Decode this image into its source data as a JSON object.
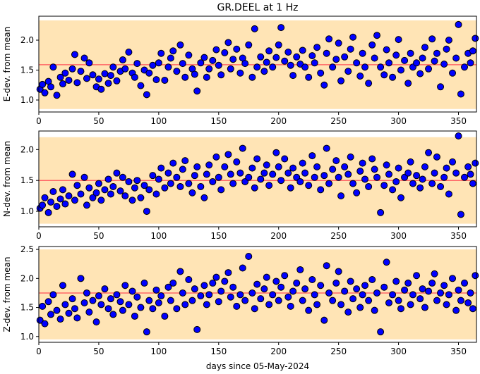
{
  "figure": {
    "title": "GR.DEEL at 1 Hz",
    "xlabel": "days since 05-May-2024"
  },
  "style": {
    "band_color": "#ffe4b5",
    "mean_line_color": "#ff6666",
    "point_fill": "#0000ff",
    "point_edge": "#000000"
  },
  "chart_data": [
    {
      "type": "scatter",
      "ylabel": "E-dev. from mean",
      "xlim": [
        0,
        365
      ],
      "ylim": [
        0.8,
        2.4
      ],
      "xticks": [
        0,
        50,
        100,
        150,
        200,
        250,
        300,
        350
      ],
      "yticks": [
        1.0,
        1.5,
        2.0
      ],
      "band": [
        0.85,
        2.33
      ],
      "mean": 1.59,
      "points": {
        "x": [
          1,
          3,
          5,
          8,
          10,
          12,
          15,
          18,
          20,
          22,
          25,
          28,
          30,
          32,
          35,
          38,
          40,
          42,
          45,
          48,
          50,
          52,
          55,
          58,
          60,
          62,
          65,
          68,
          70,
          72,
          75,
          78,
          80,
          82,
          85,
          88,
          90,
          92,
          95,
          98,
          100,
          102,
          105,
          108,
          110,
          112,
          115,
          118,
          120,
          122,
          125,
          128,
          130,
          132,
          135,
          138,
          140,
          142,
          145,
          148,
          150,
          152,
          155,
          158,
          160,
          162,
          165,
          168,
          170,
          172,
          175,
          178,
          180,
          182,
          185,
          188,
          190,
          192,
          195,
          198,
          200,
          202,
          205,
          208,
          210,
          212,
          215,
          218,
          220,
          222,
          225,
          228,
          230,
          232,
          235,
          238,
          240,
          242,
          245,
          248,
          250,
          252,
          255,
          258,
          260,
          262,
          265,
          268,
          270,
          272,
          275,
          278,
          280,
          282,
          285,
          288,
          290,
          292,
          295,
          298,
          300,
          302,
          305,
          308,
          310,
          312,
          315,
          318,
          320,
          322,
          325,
          328,
          330,
          332,
          335,
          338,
          340,
          342,
          345,
          348,
          350,
          352,
          355,
          358,
          360,
          362,
          364
        ],
        "y": [
          1.18,
          1.26,
          1.12,
          1.31,
          1.22,
          1.55,
          1.08,
          1.38,
          1.27,
          1.45,
          1.33,
          1.52,
          1.76,
          1.29,
          1.48,
          1.7,
          1.36,
          1.62,
          1.42,
          1.22,
          1.35,
          1.18,
          1.44,
          1.28,
          1.41,
          1.55,
          1.32,
          1.48,
          1.67,
          1.52,
          1.8,
          1.45,
          1.38,
          1.61,
          1.24,
          1.5,
          1.09,
          1.45,
          1.58,
          1.34,
          1.62,
          1.78,
          1.33,
          1.55,
          1.7,
          1.82,
          1.48,
          1.92,
          1.61,
          1.38,
          1.75,
          1.52,
          1.43,
          1.15,
          1.62,
          1.71,
          1.38,
          1.52,
          1.66,
          1.84,
          1.58,
          1.42,
          1.79,
          1.96,
          1.52,
          1.68,
          1.85,
          1.45,
          1.7,
          1.61,
          1.92,
          1.38,
          2.19,
          1.55,
          1.72,
          1.48,
          1.63,
          1.82,
          1.55,
          1.71,
          1.92,
          2.21,
          1.65,
          1.8,
          1.58,
          1.41,
          1.72,
          1.6,
          1.83,
          1.55,
          1.38,
          1.74,
          1.62,
          1.88,
          1.45,
          1.25,
          1.78,
          2.02,
          1.55,
          1.68,
          1.95,
          1.32,
          1.72,
          1.48,
          1.85,
          2.05,
          1.62,
          1.4,
          1.78,
          1.55,
          1.28,
          1.92,
          1.7,
          2.08,
          1.55,
          1.42,
          1.84,
          1.62,
          1.38,
          1.75,
          2.01,
          1.5,
          1.66,
          1.28,
          1.78,
          1.55,
          1.62,
          1.44,
          1.7,
          1.88,
          1.52,
          2.02,
          1.65,
          1.78,
          1.22,
          1.6,
          1.85,
          2.0,
          1.45,
          1.7,
          2.26,
          1.1,
          1.55,
          1.78,
          1.62,
          1.82,
          2.03
        ]
      }
    },
    {
      "type": "scatter",
      "ylabel": "N-dev. from mean",
      "xlim": [
        0,
        365
      ],
      "ylim": [
        0.75,
        2.3
      ],
      "xticks": [
        0,
        50,
        100,
        150,
        200,
        250,
        300,
        350
      ],
      "yticks": [
        1.0,
        1.5,
        2.0
      ],
      "band": [
        0.8,
        2.2
      ],
      "mean": 1.5,
      "points": {
        "x": [
          1,
          3,
          5,
          8,
          10,
          12,
          15,
          18,
          20,
          22,
          25,
          28,
          30,
          32,
          35,
          38,
          40,
          42,
          45,
          48,
          50,
          52,
          55,
          58,
          60,
          62,
          65,
          68,
          70,
          72,
          75,
          78,
          80,
          82,
          85,
          88,
          90,
          92,
          95,
          98,
          100,
          102,
          105,
          108,
          110,
          112,
          115,
          118,
          120,
          122,
          125,
          128,
          130,
          132,
          135,
          138,
          140,
          142,
          145,
          148,
          150,
          152,
          155,
          158,
          160,
          162,
          165,
          168,
          170,
          172,
          175,
          178,
          180,
          182,
          185,
          188,
          190,
          192,
          195,
          198,
          200,
          202,
          205,
          208,
          210,
          212,
          215,
          218,
          220,
          222,
          225,
          228,
          230,
          232,
          235,
          238,
          240,
          242,
          245,
          248,
          250,
          252,
          255,
          258,
          260,
          262,
          265,
          268,
          270,
          272,
          275,
          278,
          280,
          282,
          285,
          288,
          290,
          292,
          295,
          298,
          300,
          302,
          305,
          308,
          310,
          312,
          315,
          318,
          320,
          322,
          325,
          328,
          330,
          332,
          335,
          338,
          340,
          342,
          345,
          348,
          350,
          352,
          355,
          358,
          360,
          362,
          364
        ],
        "y": [
          1.05,
          1.1,
          1.22,
          0.98,
          1.15,
          1.32,
          1.08,
          1.2,
          1.35,
          1.12,
          1.25,
          1.6,
          1.18,
          1.42,
          1.28,
          1.55,
          1.1,
          1.38,
          1.22,
          1.3,
          1.45,
          1.18,
          1.35,
          1.52,
          1.28,
          1.4,
          1.62,
          1.33,
          1.55,
          1.25,
          1.48,
          1.18,
          1.38,
          1.5,
          1.22,
          1.42,
          1.0,
          1.35,
          1.58,
          1.28,
          1.52,
          1.7,
          1.38,
          1.62,
          1.45,
          1.78,
          1.55,
          1.4,
          1.68,
          1.82,
          1.45,
          1.3,
          1.58,
          1.72,
          1.4,
          1.22,
          1.6,
          1.75,
          1.48,
          1.88,
          1.55,
          1.35,
          1.72,
          1.92,
          1.6,
          1.45,
          1.8,
          1.62,
          2.02,
          1.48,
          1.55,
          1.7,
          1.38,
          1.85,
          1.52,
          1.62,
          1.75,
          1.42,
          1.6,
          1.95,
          1.72,
          1.5,
          1.85,
          1.62,
          1.38,
          1.7,
          1.55,
          1.48,
          1.78,
          1.62,
          1.42,
          1.9,
          1.55,
          1.72,
          1.35,
          1.58,
          2.02,
          1.45,
          1.68,
          1.82,
          1.55,
          1.25,
          1.72,
          1.6,
          1.88,
          1.45,
          1.3,
          1.65,
          1.78,
          1.52,
          1.4,
          1.85,
          1.68,
          1.55,
          0.98,
          1.42,
          1.75,
          1.6,
          1.35,
          1.48,
          1.7,
          1.22,
          1.55,
          1.62,
          1.8,
          1.45,
          1.58,
          1.38,
          1.52,
          1.72,
          1.95,
          1.45,
          1.62,
          1.88,
          1.4,
          1.55,
          1.7,
          1.28,
          1.8,
          1.62,
          2.22,
          0.95,
          1.55,
          1.72,
          1.6,
          1.45,
          1.78
        ]
      }
    },
    {
      "type": "scatter",
      "ylabel": "Z-dev. from mean",
      "xlim": [
        0,
        365
      ],
      "ylim": [
        0.9,
        2.55
      ],
      "xticks": [
        0,
        50,
        100,
        150,
        200,
        250,
        300,
        350
      ],
      "yticks": [
        1.0,
        1.5,
        2.0,
        2.5
      ],
      "band": [
        0.95,
        2.5
      ],
      "mean": 1.75,
      "points": {
        "x": [
          1,
          3,
          5,
          8,
          10,
          12,
          15,
          18,
          20,
          22,
          25,
          28,
          30,
          32,
          35,
          38,
          40,
          42,
          45,
          48,
          50,
          52,
          55,
          58,
          60,
          62,
          65,
          68,
          70,
          72,
          75,
          78,
          80,
          82,
          85,
          88,
          90,
          92,
          95,
          98,
          100,
          102,
          105,
          108,
          110,
          112,
          115,
          118,
          120,
          122,
          125,
          128,
          130,
          132,
          135,
          138,
          140,
          142,
          145,
          148,
          150,
          152,
          155,
          158,
          160,
          162,
          165,
          168,
          170,
          172,
          175,
          178,
          180,
          182,
          185,
          188,
          190,
          192,
          195,
          198,
          200,
          202,
          205,
          208,
          210,
          212,
          215,
          218,
          220,
          222,
          225,
          228,
          230,
          232,
          235,
          238,
          240,
          242,
          245,
          248,
          250,
          252,
          255,
          258,
          260,
          262,
          265,
          268,
          270,
          272,
          275,
          278,
          280,
          282,
          285,
          288,
          290,
          292,
          295,
          298,
          300,
          302,
          305,
          308,
          310,
          312,
          315,
          318,
          320,
          322,
          325,
          328,
          330,
          332,
          335,
          338,
          340,
          342,
          345,
          348,
          350,
          352,
          355,
          358,
          360,
          362,
          364
        ],
        "y": [
          1.28,
          1.52,
          1.22,
          1.6,
          1.38,
          1.72,
          1.45,
          1.3,
          1.88,
          1.55,
          1.4,
          1.65,
          1.48,
          1.32,
          2.0,
          1.58,
          1.75,
          1.42,
          1.62,
          1.25,
          1.7,
          1.55,
          1.82,
          1.48,
          1.65,
          1.38,
          1.72,
          1.6,
          1.45,
          1.88,
          1.55,
          1.78,
          1.35,
          1.68,
          1.5,
          1.92,
          1.08,
          1.62,
          1.48,
          1.8,
          1.58,
          1.7,
          1.35,
          1.85,
          1.62,
          1.92,
          1.48,
          2.12,
          1.75,
          1.55,
          1.98,
          1.62,
          1.82,
          1.12,
          1.7,
          1.88,
          1.55,
          1.72,
          1.92,
          2.02,
          1.6,
          1.78,
          1.95,
          2.1,
          1.68,
          1.85,
          1.52,
          1.72,
          2.18,
          1.62,
          2.38,
          1.75,
          1.48,
          1.9,
          1.65,
          1.82,
          2.02,
          1.55,
          1.72,
          1.95,
          1.62,
          1.85,
          2.05,
          1.68,
          1.52,
          1.78,
          1.92,
          2.15,
          1.62,
          1.82,
          1.45,
          1.98,
          1.72,
          1.55,
          1.88,
          1.28,
          2.22,
          1.75,
          1.62,
          1.92,
          2.12,
          1.55,
          1.78,
          1.42,
          1.95,
          1.65,
          1.82,
          1.5,
          1.72,
          1.88,
          1.62,
          1.98,
          1.45,
          1.75,
          1.08,
          1.85,
          2.28,
          1.58,
          1.72,
          1.95,
          1.62,
          1.48,
          1.8,
          1.92,
          1.55,
          1.72,
          2.05,
          1.65,
          1.82,
          1.5,
          1.78,
          1.92,
          2.08,
          1.62,
          1.75,
          1.88,
          1.55,
          1.72,
          2.0,
          1.45,
          1.8,
          1.62,
          1.92,
          1.58,
          1.75,
          1.48,
          2.05
        ]
      }
    }
  ]
}
